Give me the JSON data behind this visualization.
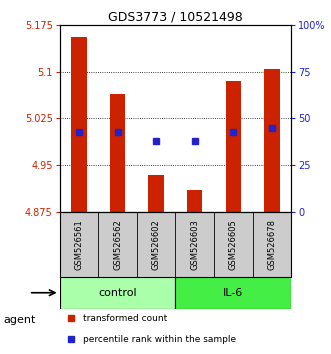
{
  "title": "GDS3773 / 10521498",
  "samples": [
    "GSM526561",
    "GSM526562",
    "GSM526602",
    "GSM526603",
    "GSM526605",
    "GSM526678"
  ],
  "transformed_counts": [
    5.155,
    5.065,
    4.935,
    4.91,
    5.085,
    5.105
  ],
  "percentile_ranks": [
    43,
    43,
    38,
    38,
    43,
    45
  ],
  "baseline": 4.875,
  "ylim_left": [
    4.875,
    5.175
  ],
  "yticks_left": [
    4.875,
    4.95,
    5.025,
    5.1,
    5.175
  ],
  "yticks_right": [
    0,
    25,
    50,
    75,
    100
  ],
  "ylim_right": [
    0,
    100
  ],
  "bar_color": "#cc2200",
  "dot_color": "#2222cc",
  "groups": [
    {
      "label": "control",
      "indices": [
        0,
        1,
        2
      ],
      "color": "#aaffaa"
    },
    {
      "label": "IL-6",
      "indices": [
        3,
        4,
        5
      ],
      "color": "#44ee44"
    }
  ],
  "agent_label": "agent",
  "legend_bar_label": "transformed count",
  "legend_dot_label": "percentile rank within the sample",
  "bg_color": "#ffffff",
  "plot_bg": "#ffffff",
  "tick_label_color_left": "#cc2200",
  "tick_label_color_right": "#2222cc",
  "grid_color": "#000000",
  "sample_box_color": "#cccccc",
  "title_fontsize": 9,
  "tick_fontsize": 7,
  "bar_width": 0.4
}
